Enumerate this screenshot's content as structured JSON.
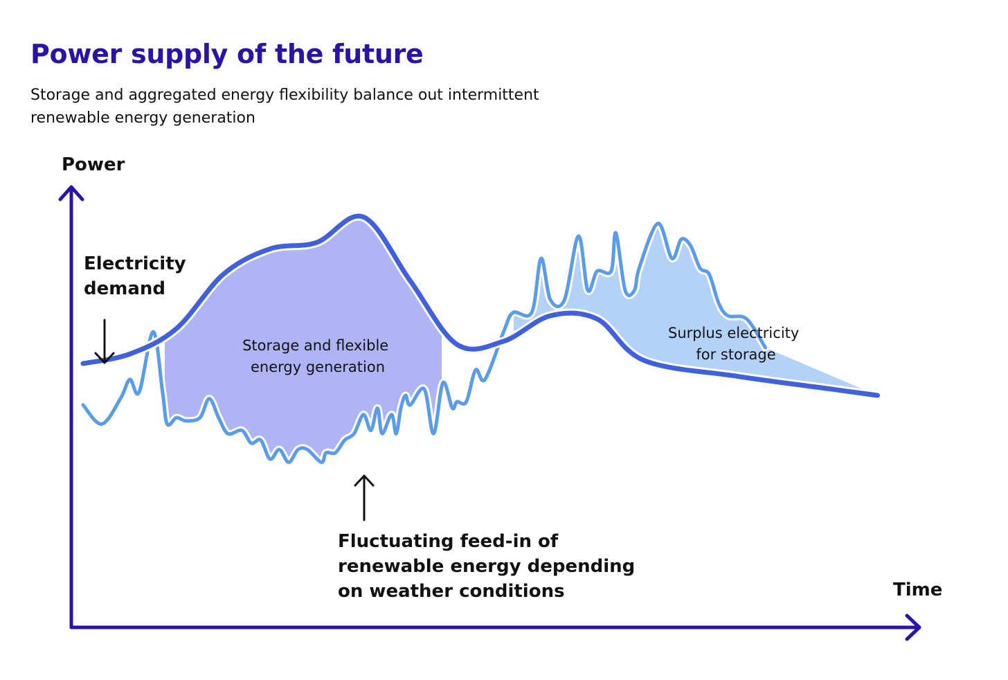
{
  "title": "Power supply of the future",
  "subtitle_lines": [
    "Storage and aggregated energy flexibility balance out intermittent",
    "renewable energy generation"
  ],
  "chart_data": {
    "type": "area",
    "title": "Power supply of the future",
    "subtitle": "Storage and aggregated energy flexibility balance out intermittent renewable energy generation",
    "xlabel": "Time",
    "ylabel": "Power",
    "axis_ticks": "none",
    "grid": false,
    "series": [
      {
        "name": "Electricity demand",
        "line": "smooth",
        "color": "#4060dc",
        "points": [
          [
            0,
            1.5
          ],
          [
            5,
            1.8
          ],
          [
            10,
            2.6
          ],
          [
            15,
            4.3
          ],
          [
            20,
            5.1
          ],
          [
            25,
            5.3
          ],
          [
            30,
            6.1
          ],
          [
            35,
            4.1
          ],
          [
            40,
            2.1
          ],
          [
            45,
            2.2
          ],
          [
            50,
            3.0
          ],
          [
            55,
            2.9
          ],
          [
            60,
            1.6
          ],
          [
            70,
            1.1
          ],
          [
            80,
            0.7
          ],
          [
            85,
            0.5
          ]
        ]
      },
      {
        "name": "Fluctuating feed-in of renewable energy depending on weather conditions",
        "line": "jagged",
        "color": "#5a9bea",
        "points": [
          [
            0,
            0.2
          ],
          [
            2,
            -0.4
          ],
          [
            4,
            0.4
          ],
          [
            5,
            1
          ],
          [
            6,
            0.6
          ],
          [
            7.5,
            2.5
          ],
          [
            8.5,
            0.6
          ],
          [
            9,
            -0.4
          ],
          [
            10,
            -0.2
          ],
          [
            11,
            -0.3
          ],
          [
            12.5,
            -0.2
          ],
          [
            13.5,
            0.4
          ],
          [
            14.5,
            -0.2
          ],
          [
            15.5,
            -0.7
          ],
          [
            17,
            -0.6
          ],
          [
            18,
            -1.0
          ],
          [
            19,
            -0.9
          ],
          [
            20,
            -1.5
          ],
          [
            21,
            -1.2
          ],
          [
            22,
            -1.6
          ],
          [
            23,
            -1.2
          ],
          [
            24,
            -1.2
          ],
          [
            25.5,
            -1.6
          ],
          [
            26,
            -1.3
          ],
          [
            27,
            -1.3
          ],
          [
            28,
            -0.9
          ],
          [
            29,
            -0.7
          ],
          [
            30,
            -0.1
          ],
          [
            30.8,
            -0.6
          ],
          [
            31.5,
            0.1
          ],
          [
            32,
            -0.7
          ],
          [
            33,
            -0.1
          ],
          [
            33.5,
            -0.7
          ],
          [
            34,
            0.1
          ],
          [
            34.5,
            0.5
          ],
          [
            35,
            0.2
          ],
          [
            36.5,
            0.7
          ],
          [
            37.5,
            -0.7
          ],
          [
            38.5,
            0.9
          ],
          [
            39.5,
            0.1
          ],
          [
            40,
            0.3
          ],
          [
            41,
            0.3
          ],
          [
            42,
            1.3
          ],
          [
            43,
            1.0
          ],
          [
            45,
            2.5
          ],
          [
            46,
            3.1
          ],
          [
            48,
            3.1
          ],
          [
            49,
            4.8
          ],
          [
            50,
            3.5
          ],
          [
            51.5,
            3.5
          ],
          [
            53,
            5.5
          ],
          [
            54,
            3.8
          ],
          [
            55,
            4.4
          ],
          [
            56.5,
            4.4
          ],
          [
            57,
            5.6
          ],
          [
            58,
            3.8
          ],
          [
            59,
            3.8
          ],
          [
            59.5,
            4.5
          ],
          [
            61.5,
            5.9
          ],
          [
            63,
            4.8
          ],
          [
            64,
            5.4
          ],
          [
            65,
            5.2
          ],
          [
            66,
            4.5
          ],
          [
            67,
            4.3
          ],
          [
            68,
            3.4
          ],
          [
            69,
            3.0
          ],
          [
            71,
            2.9
          ],
          [
            73,
            2.0
          ]
        ]
      }
    ],
    "regions": [
      {
        "label": "Storage and flexible energy generation",
        "meaning": "demand above renewable feed-in",
        "color": "#aeb4f4"
      },
      {
        "label": "Surplus electricity for storage",
        "meaning": "renewable feed-in above demand",
        "color": "#b4d2f8"
      }
    ],
    "annotations": [
      {
        "lines": [
          "Electricity",
          "demand"
        ],
        "target": "Electricity demand"
      },
      {
        "lines": [
          "Fluctuating feed-in of",
          "renewable energy depending",
          "on weather conditions"
        ],
        "target": "Fluctuating feed-in of renewable energy depending on weather conditions"
      },
      {
        "lines": [
          "Storage and flexible",
          "energy generation"
        ]
      },
      {
        "lines": [
          "Surplus electricity",
          "for storage"
        ]
      }
    ],
    "colors": {
      "title": "#2a14a8",
      "axis": "#2a14a8",
      "demand_line": "#4060dc",
      "renewable_line": "#5a9bea",
      "deficit_fill": "#aeb4f4",
      "surplus_fill": "#b4d2f8",
      "annotation_arrow": "#111111"
    }
  }
}
